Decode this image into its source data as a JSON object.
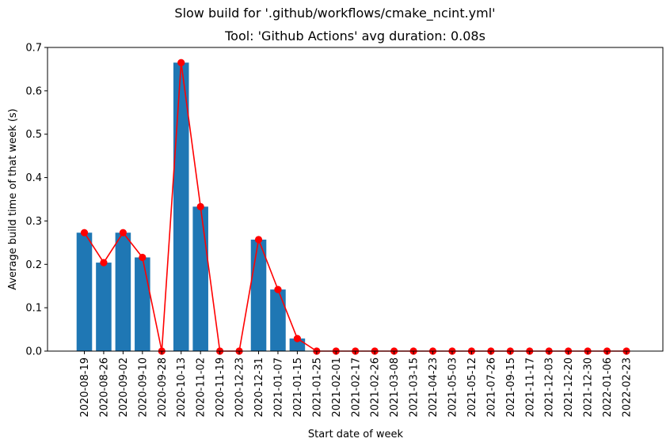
{
  "suptitle": "Slow build for '.github/workflows/cmake_ncint.yml'",
  "chart_data": {
    "type": "bar",
    "title": "Tool: 'Github Actions' avg duration: 0.08s",
    "xlabel": "Start date of week",
    "ylabel": "Average build time of that week (s)",
    "ylim": [
      0,
      0.7
    ],
    "yticks": [
      "0.0",
      "0.1",
      "0.2",
      "0.3",
      "0.4",
      "0.5",
      "0.6",
      "0.7"
    ],
    "grid": false,
    "categories": [
      "2020-08-19",
      "2020-08-26",
      "2020-09-02",
      "2020-09-10",
      "2020-09-28",
      "2020-10-13",
      "2020-11-02",
      "2020-11-19",
      "2020-12-23",
      "2020-12-31",
      "2021-01-07",
      "2021-01-15",
      "2021-01-25",
      "2021-02-01",
      "2021-02-17",
      "2021-02-26",
      "2021-03-08",
      "2021-03-15",
      "2021-04-23",
      "2021-05-03",
      "2021-05-12",
      "2021-07-26",
      "2021-09-15",
      "2021-11-17",
      "2021-12-03",
      "2021-12-20",
      "2021-12-30",
      "2022-01-06",
      "2022-02-23"
    ],
    "series": [
      {
        "kind": "bar",
        "color": "#1f77b4",
        "values": [
          0.273,
          0.204,
          0.273,
          0.216,
          0,
          0.665,
          0.333,
          0,
          0,
          0.257,
          0.142,
          0.029,
          0,
          0,
          0,
          0,
          0,
          0,
          0,
          0,
          0,
          0,
          0,
          0,
          0,
          0,
          0,
          0,
          0
        ]
      },
      {
        "kind": "line",
        "marker": "circle",
        "color": "#ff0000",
        "values": [
          0.273,
          0.204,
          0.273,
          0.216,
          0,
          0.665,
          0.333,
          0,
          0,
          0.257,
          0.142,
          0.029,
          0,
          0,
          0,
          0,
          0,
          0,
          0,
          0,
          0,
          0,
          0,
          0,
          0,
          0,
          0,
          0,
          0
        ]
      }
    ]
  }
}
